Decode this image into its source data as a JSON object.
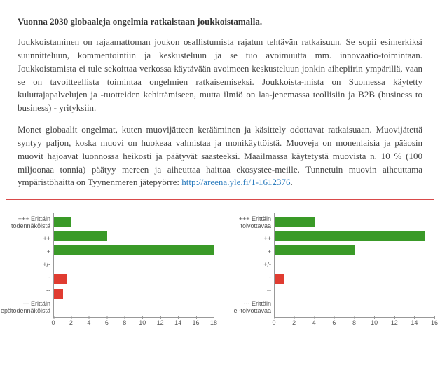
{
  "textbox": {
    "title": "Vuonna 2030 globaaleja ongelmia ratkaistaan joukkoistamalla.",
    "para1": "Joukkoistaminen on rajaamattoman joukon osallistumista rajatun tehtävän ratkaisuun. Se sopii esimerkiksi suunnitteluun, kommentointiin ja keskusteluun ja se tuo avoimuutta mm. innovaatio-toimintaan. Joukkoistamista ei tule sekoittaa verkossa käytävään avoimeen keskusteluun jonkin aihepiirin ympärillä, vaan se on tavoitteellista toimintaa ongelmien ratkaisemiseksi. Joukkoista-mista on Suomessa käytetty kuluttajapalvelujen ja -tuotteiden kehittämiseen, mutta ilmiö on laa-jenemassa teollisiin ja B2B (business to business) - yrityksiin.",
    "para2_a": "Monet globaalit ongelmat, kuten muovijätteen kerääminen ja käsittely odottavat ratkaisuaan. Muovijätettä syntyy paljon, koska muovi on huokeaa valmistaa ja monikäyttöistä. Muoveja on monenlaisia ja pääosin muovit hajoavat luonnossa heikosti ja päätyvät saasteeksi. Maailmassa käytetystä muovista n. 10 % (100 miljoonaa tonnia) päätyy mereen ja aiheuttaa haittaa ekosystee-meille. Tunnetuin muovin aiheuttama ympäristöhaitta on Tyynenmeren jätepyörre: ",
    "link_text": "http://areena.yle.fi/1-1612376",
    "para2_b": "."
  },
  "chart_left": {
    "xmax": 18,
    "xtick_step": 2,
    "colors": {
      "pos": "#3a9a28",
      "neg": "#e03c31"
    },
    "categories": [
      {
        "label": "+++ Erittäin\ntodennäköistä",
        "value": 2,
        "color": "pos"
      },
      {
        "label": "++",
        "value": 6,
        "color": "pos"
      },
      {
        "label": "+",
        "value": 18,
        "color": "pos"
      },
      {
        "label": "+/-",
        "value": 0,
        "color": "pos"
      },
      {
        "label": "-",
        "value": 1.5,
        "color": "neg"
      },
      {
        "label": "--",
        "value": 1,
        "color": "neg"
      },
      {
        "label": "--- Erittäin\nepätodennäköistä",
        "value": 0,
        "color": "neg"
      }
    ]
  },
  "chart_right": {
    "xmax": 16,
    "xtick_step": 2,
    "colors": {
      "pos": "#3a9a28",
      "neg": "#e03c31"
    },
    "categories": [
      {
        "label": "+++ Erittäin\ntoivottavaa",
        "value": 4,
        "color": "pos"
      },
      {
        "label": "++",
        "value": 15,
        "color": "pos"
      },
      {
        "label": "+",
        "value": 8,
        "color": "pos"
      },
      {
        "label": "+/-",
        "value": 0,
        "color": "pos"
      },
      {
        "label": "-",
        "value": 1,
        "color": "neg"
      },
      {
        "label": "--",
        "value": 0,
        "color": "neg"
      },
      {
        "label": "--- Erittäin\nei-toivottavaa",
        "value": 0,
        "color": "neg"
      }
    ]
  }
}
